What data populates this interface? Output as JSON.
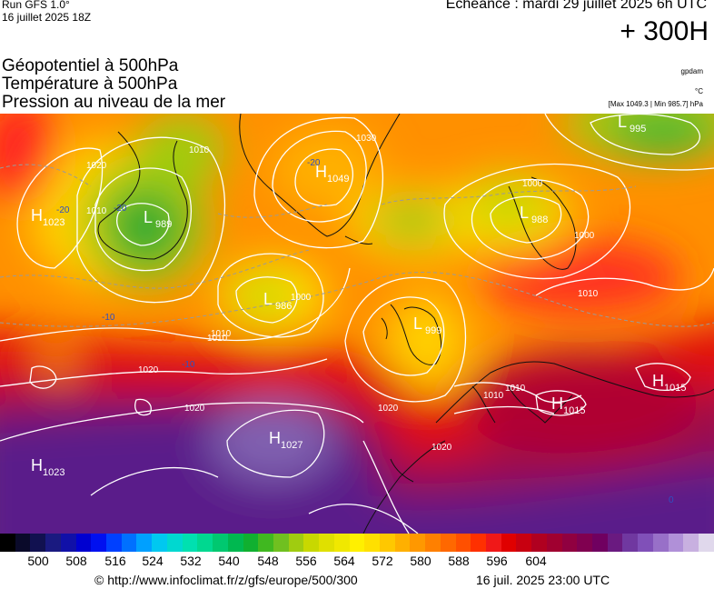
{
  "header": {
    "run_line": "Run GFS 1.0°",
    "run_date": "16 juillet 2025 18Z",
    "echeance": "Echéance : mardi 29 juillet 2025 6h UTC",
    "horizon": "+ 300H"
  },
  "titles": [
    "Géopotentiel à 500hPa",
    "Température à 500hPa",
    "Pression au niveau de la mer"
  ],
  "units": {
    "geopotential": "gpdam",
    "temperature": "°C",
    "pressure_range": "[Max 1049.3 | Min 985.7] hPa"
  },
  "map": {
    "pressure_centers": [
      {
        "type": "H",
        "value": "1023",
        "name": "high-west-atlantic"
      },
      {
        "type": "L",
        "value": "989",
        "name": "low-labrador"
      },
      {
        "type": "H",
        "value": "1049",
        "name": "high-greenland"
      },
      {
        "type": "L",
        "value": "995",
        "name": "low-arctic"
      },
      {
        "type": "L",
        "value": "986",
        "name": "low-mid-atlantic"
      },
      {
        "type": "L",
        "value": "988",
        "name": "low-scandinavia"
      },
      {
        "type": "L",
        "value": "999",
        "name": "low-british-isles"
      },
      {
        "type": "H",
        "value": "1015",
        "name": "high-east-europe"
      },
      {
        "type": "H",
        "value": "1015",
        "name": "high-balkans"
      },
      {
        "type": "H",
        "value": "1027",
        "name": "high-azores"
      },
      {
        "type": "H",
        "value": "1023",
        "name": "high-south-atlantic"
      }
    ],
    "isobar_labels": [
      "1020",
      "1010",
      "1010",
      "1030",
      "1020",
      "1000",
      "1000",
      "1000",
      "1010",
      "1010",
      "1020",
      "1020",
      "1020",
      "1010",
      "1010",
      "1010"
    ],
    "temp_labels": [
      "-20",
      "-20",
      "-20",
      "-10",
      "-10",
      "0"
    ]
  },
  "colorbar": {
    "colors": [
      "#000000",
      "#0a0a2a",
      "#111150",
      "#1a1a80",
      "#1010a8",
      "#0000d0",
      "#0010f0",
      "#0040ff",
      "#0070ff",
      "#00a0ff",
      "#00c8f0",
      "#00d8d0",
      "#00e0b0",
      "#00d890",
      "#00c870",
      "#00b850",
      "#10b030",
      "#40b820",
      "#70c020",
      "#a0cc10",
      "#c8d800",
      "#e0e000",
      "#f0e800",
      "#fff000",
      "#ffe000",
      "#ffc800",
      "#ffb000",
      "#ff9800",
      "#ff8000",
      "#ff6800",
      "#ff5000",
      "#ff3000",
      "#f01818",
      "#e00000",
      "#c80010",
      "#b00020",
      "#a00030",
      "#900040",
      "#800050",
      "#700060",
      "#6a1a80",
      "#7038a0",
      "#8050b8",
      "#9870c8",
      "#b090d8",
      "#c8b0e0",
      "#e0d8ec"
    ],
    "tick_labels": [
      "500",
      "508",
      "516",
      "524",
      "532",
      "540",
      "548",
      "556",
      "564",
      "572",
      "580",
      "588",
      "596",
      "604"
    ]
  },
  "footer": {
    "credit": "© http://www.infoclimat.fr/z/gfs/europe/500/300",
    "generated": "16 juil. 2025 23:00 UTC"
  }
}
